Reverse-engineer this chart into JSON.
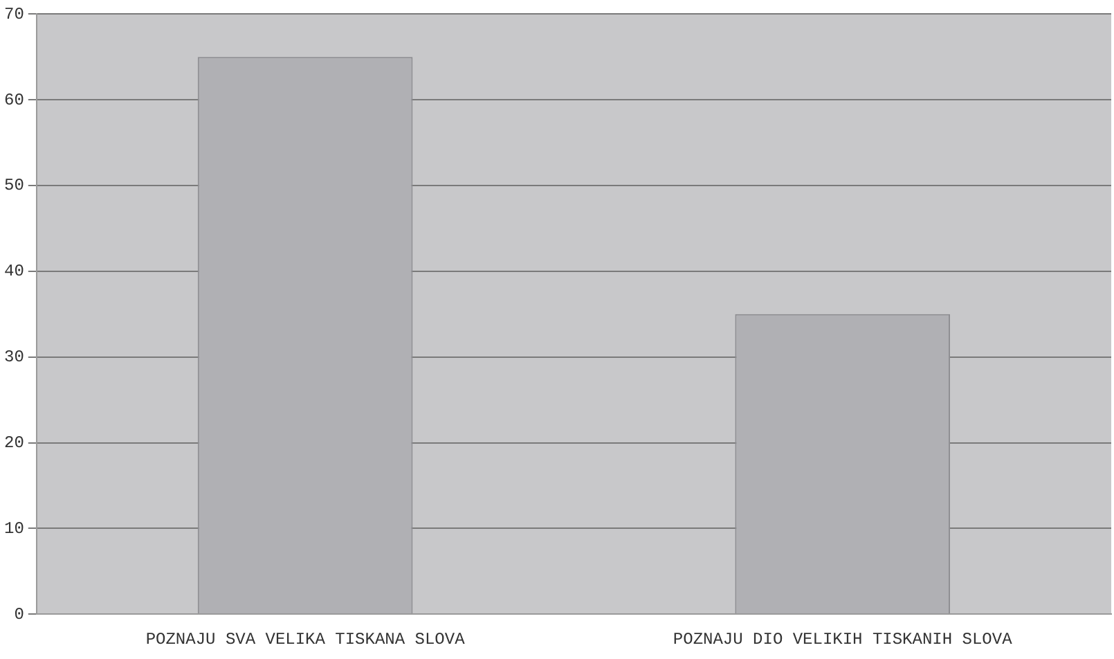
{
  "chart_data": {
    "type": "bar",
    "categories": [
      "POZNAJU SVA VELIKA TISKANA SLOVA",
      "POZNAJU DIO VELIKIH TISKANIH SLOVA"
    ],
    "values": [
      65,
      35
    ],
    "color": "#b0b0b4",
    "ylim": [
      0,
      70
    ],
    "yticks": [
      0,
      10,
      20,
      30,
      40,
      50,
      60,
      70
    ],
    "grid": "y"
  }
}
